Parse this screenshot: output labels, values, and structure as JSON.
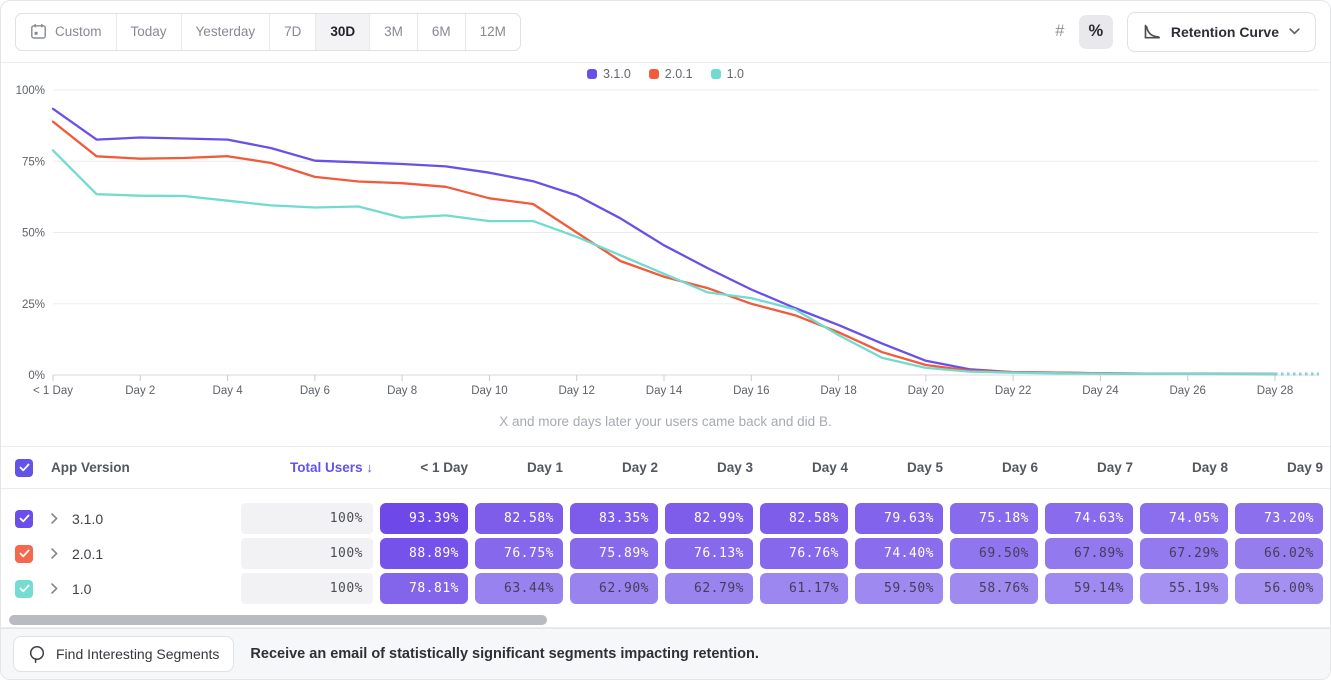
{
  "toolbar": {
    "date_ranges": [
      {
        "label": "Custom",
        "icon": "calendar",
        "active": false
      },
      {
        "label": "Today",
        "active": false
      },
      {
        "label": "Yesterday",
        "active": false
      },
      {
        "label": "7D",
        "active": false
      },
      {
        "label": "30D",
        "active": true
      },
      {
        "label": "3M",
        "active": false
      },
      {
        "label": "6M",
        "active": false
      },
      {
        "label": "12M",
        "active": false
      }
    ],
    "value_format": {
      "options": [
        {
          "id": "number",
          "label": "#"
        },
        {
          "id": "percent",
          "label": "%"
        }
      ],
      "active": "percent"
    },
    "chart_type": {
      "label": "Retention Curve"
    }
  },
  "chart_data": {
    "type": "line",
    "subtitle": "X and more days later your users came back and did B.",
    "y_ticks": [
      0,
      25,
      50,
      75,
      100
    ],
    "y_tick_suffix": "%",
    "ylim": [
      0,
      100
    ],
    "x_tick_labels": [
      "< 1 Day",
      "Day 2",
      "Day 4",
      "Day 6",
      "Day 8",
      "Day 10",
      "Day 12",
      "Day 14",
      "Day 16",
      "Day 18",
      "Day 20",
      "Day 22",
      "Day 24",
      "Day 26",
      "Day 28"
    ],
    "x_tick_every_days": 2,
    "x_day_count": 29,
    "legend_position": "top-center",
    "grid": true,
    "dashed_tail": true,
    "series": [
      {
        "name": "3.1.0",
        "color": "#6a4fe8",
        "values": [
          93.39,
          82.58,
          83.35,
          82.99,
          82.58,
          79.63,
          75.18,
          74.63,
          74.05,
          73.2,
          71,
          68,
          63,
          55,
          45.5,
          37.5,
          30,
          23.5,
          17.5,
          11,
          5,
          2,
          1,
          0.8,
          0.6,
          0.5,
          0.5,
          0.4,
          0.4
        ]
      },
      {
        "name": "2.0.1",
        "color": "#f25a3c",
        "values": [
          88.89,
          76.75,
          75.89,
          76.13,
          76.76,
          74.4,
          69.5,
          67.89,
          67.29,
          66.02,
          62,
          60,
          50,
          40,
          34.5,
          30.5,
          25,
          21,
          15,
          8,
          3.5,
          1.5,
          1,
          0.8,
          0.6,
          0.5,
          0.4,
          0.4,
          0.3
        ]
      },
      {
        "name": "1.0",
        "color": "#70dbd0",
        "values": [
          78.81,
          63.44,
          62.9,
          62.79,
          61.17,
          59.5,
          58.76,
          59.14,
          55.19,
          56,
          54,
          54,
          48.5,
          42,
          35.5,
          29,
          27,
          23,
          14,
          6,
          2.5,
          1.2,
          0.8,
          0.6,
          0.5,
          0.4,
          0.4,
          0.3,
          0.3
        ]
      }
    ]
  },
  "table": {
    "header": {
      "app_version": "App Version",
      "total_users": "Total Users",
      "sort_arrow": "↓",
      "day_columns": [
        "< 1 Day",
        "Day 1",
        "Day 2",
        "Day 3",
        "Day 4",
        "Day 5",
        "Day 6",
        "Day 7",
        "Day 8",
        "Day 9"
      ]
    },
    "rows": [
      {
        "version": "3.1.0",
        "checkbox_color": "#6a4fe8",
        "checked": true,
        "total": "100%",
        "cells": [
          "93.39%",
          "82.58%",
          "83.35%",
          "82.99%",
          "82.58%",
          "79.63%",
          "75.18%",
          "74.63%",
          "74.05%",
          "73.20%"
        ]
      },
      {
        "version": "2.0.1",
        "checkbox_color": "#f4694c",
        "checked": true,
        "total": "100%",
        "cells": [
          "88.89%",
          "76.75%",
          "75.89%",
          "76.13%",
          "76.76%",
          "74.40%",
          "69.50%",
          "67.89%",
          "67.29%",
          "66.02%"
        ]
      },
      {
        "version": "1.0",
        "checkbox_color": "#74dcd1",
        "checked": true,
        "total": "100%",
        "cells": [
          "78.81%",
          "63.44%",
          "62.90%",
          "62.79%",
          "61.17%",
          "59.50%",
          "58.76%",
          "59.14%",
          "55.19%",
          "56.00%"
        ]
      }
    ]
  },
  "footer": {
    "button_label": "Find Interesting Segments",
    "message": "Receive an email of statistically significant segments impacting retention."
  },
  "colors": {
    "accent_purple": "#6254e8",
    "heatmap_low": "#ab9bf2",
    "heatmap_high": "#6d46e8",
    "heatmap_low_value": 50,
    "heatmap_high_value": 95,
    "cell_text_light": "#ffffff",
    "cell_text_dark": "#453e5a",
    "cell_text_threshold": 70
  }
}
